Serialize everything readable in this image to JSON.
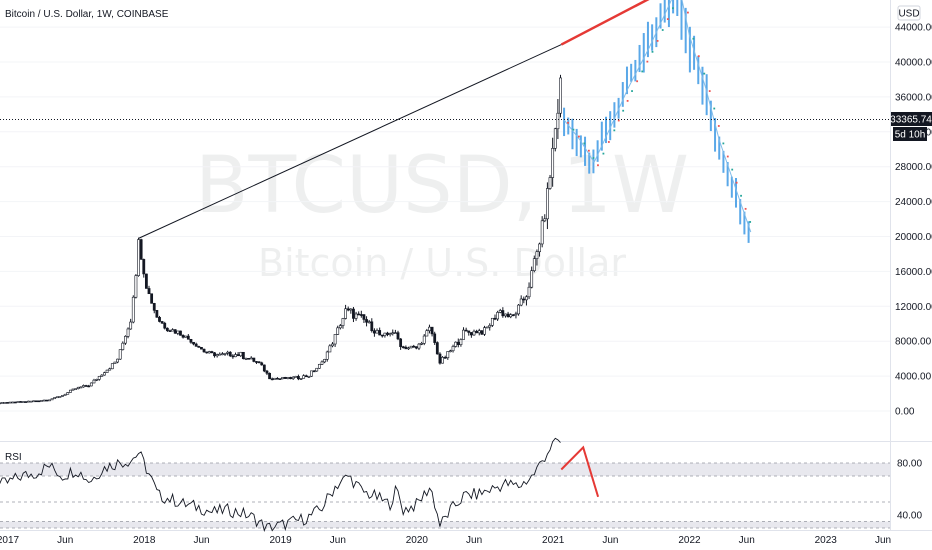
{
  "header": {
    "symbol_title": "Bitcoin / U.S. Dollar, 1W, COINBASE",
    "currency": "USD"
  },
  "watermark": {
    "ticker": "BTCUSD, 1W",
    "name": "Bitcoin / U.S. Dollar"
  },
  "price_tag": {
    "value": "33365.74",
    "countdown": "5d 10h"
  },
  "rsi_pane": {
    "label": "RSI"
  },
  "colors": {
    "candle": "#131722",
    "projection_bars": "#5aa8e8",
    "trendline": "#131722",
    "trendline_red": "#e53935",
    "rsi_line": "#131722",
    "rsi_projection": "#e53935",
    "dots_green": "#26a69a",
    "dots_red": "#ef5350",
    "tag_bg": "#131722"
  },
  "chart_data": [
    {
      "type": "candlestick",
      "title": "Bitcoin / U.S. Dollar, 1W, COINBASE",
      "y_ticks": [
        "44000.00",
        "40000.00",
        "36000.00",
        "32000.00",
        "28000.00",
        "24000.00",
        "20000.00",
        "16000.00",
        "12000.00",
        "8000.00",
        "4000.00",
        "0.00"
      ],
      "ylim": [
        0,
        48000
      ],
      "x_ticks": [
        "2017",
        "Jun",
        "2018",
        "Jun",
        "2019",
        "Jun",
        "2020",
        "Jun",
        "2021",
        "Jun",
        "2022",
        "Jun",
        "2023",
        "Jun"
      ],
      "x_tick_values": [
        2017.0,
        2017.42,
        2018.0,
        2018.42,
        2019.0,
        2019.42,
        2020.0,
        2020.42,
        2021.0,
        2021.42,
        2022.0,
        2022.42,
        2023.0,
        2023.42
      ],
      "xlim": [
        2017.0,
        2023.6
      ],
      "last_price": 33365.74,
      "price_path": [
        [
          2016.9,
          900
        ],
        [
          2017.15,
          1100
        ],
        [
          2017.3,
          1300
        ],
        [
          2017.4,
          1800
        ],
        [
          2017.5,
          2600
        ],
        [
          2017.6,
          3000
        ],
        [
          2017.7,
          4400
        ],
        [
          2017.8,
          5800
        ],
        [
          2017.9,
          10500
        ],
        [
          2017.96,
          19500
        ],
        [
          2018.02,
          14000
        ],
        [
          2018.1,
          10500
        ],
        [
          2018.17,
          9500
        ],
        [
          2018.25,
          9000
        ],
        [
          2018.35,
          8000
        ],
        [
          2018.45,
          6700
        ],
        [
          2018.55,
          6400
        ],
        [
          2018.7,
          6500
        ],
        [
          2018.85,
          5400
        ],
        [
          2018.92,
          3800
        ],
        [
          2019.0,
          3700
        ],
        [
          2019.1,
          3800
        ],
        [
          2019.2,
          4000
        ],
        [
          2019.3,
          5400
        ],
        [
          2019.4,
          8500
        ],
        [
          2019.48,
          11500
        ],
        [
          2019.55,
          11000
        ],
        [
          2019.65,
          10000
        ],
        [
          2019.75,
          8300
        ],
        [
          2019.82,
          9200
        ],
        [
          2019.9,
          7300
        ],
        [
          2020.0,
          7200
        ],
        [
          2020.1,
          9500
        ],
        [
          2020.17,
          5500
        ],
        [
          2020.25,
          7000
        ],
        [
          2020.35,
          9000
        ],
        [
          2020.5,
          9200
        ],
        [
          2020.6,
          11500
        ],
        [
          2020.7,
          10700
        ],
        [
          2020.8,
          13200
        ],
        [
          2020.88,
          18000
        ],
        [
          2020.95,
          23500
        ],
        [
          2021.02,
          33000
        ],
        [
          2021.06,
          38500
        ]
      ],
      "projection_path": [
        [
          2021.08,
          33365.74
        ],
        [
          2021.2,
          31000
        ],
        [
          2021.3,
          28500
        ],
        [
          2021.42,
          32500
        ],
        [
          2021.55,
          37000
        ],
        [
          2021.7,
          41500
        ],
        [
          2021.85,
          46500
        ],
        [
          2021.92,
          49000
        ],
        [
          2022.0,
          43000
        ],
        [
          2022.12,
          37000
        ],
        [
          2022.22,
          31000
        ],
        [
          2022.35,
          25000
        ],
        [
          2022.45,
          20500
        ]
      ],
      "trendlines": [
        {
          "from": [
            2017.96,
            19800
          ],
          "to": [
            2021.06,
            42000
          ],
          "color": "#131722"
        },
        {
          "from": [
            2021.06,
            42000
          ],
          "to": [
            2021.92,
            49000
          ],
          "color": "#e53935"
        }
      ]
    },
    {
      "type": "line",
      "title": "RSI",
      "y_ticks": [
        "80.00",
        "40.00"
      ],
      "ylim": [
        25,
        100
      ],
      "rsi_path": [
        [
          2016.9,
          62
        ],
        [
          2017.0,
          65
        ],
        [
          2017.1,
          70
        ],
        [
          2017.2,
          72
        ],
        [
          2017.3,
          78
        ],
        [
          2017.4,
          70
        ],
        [
          2017.5,
          75
        ],
        [
          2017.6,
          66
        ],
        [
          2017.7,
          76
        ],
        [
          2017.8,
          80
        ],
        [
          2017.9,
          82
        ],
        [
          2017.96,
          88
        ],
        [
          2018.05,
          68
        ],
        [
          2018.1,
          55
        ],
        [
          2018.2,
          52
        ],
        [
          2018.3,
          48
        ],
        [
          2018.4,
          46
        ],
        [
          2018.5,
          42
        ],
        [
          2018.6,
          44
        ],
        [
          2018.7,
          42
        ],
        [
          2018.8,
          38
        ],
        [
          2018.9,
          30
        ],
        [
          2019.0,
          32
        ],
        [
          2019.1,
          35
        ],
        [
          2019.2,
          38
        ],
        [
          2019.3,
          45
        ],
        [
          2019.4,
          62
        ],
        [
          2019.5,
          70
        ],
        [
          2019.6,
          58
        ],
        [
          2019.7,
          54
        ],
        [
          2019.8,
          48
        ],
        [
          2019.85,
          60
        ],
        [
          2019.9,
          44
        ],
        [
          2020.0,
          48
        ],
        [
          2020.1,
          62
        ],
        [
          2020.17,
          32
        ],
        [
          2020.25,
          44
        ],
        [
          2020.35,
          55
        ],
        [
          2020.45,
          56
        ],
        [
          2020.55,
          60
        ],
        [
          2020.65,
          64
        ],
        [
          2020.75,
          62
        ],
        [
          2020.85,
          70
        ],
        [
          2020.92,
          82
        ],
        [
          2020.98,
          92
        ],
        [
          2021.03,
          98
        ],
        [
          2021.06,
          94
        ]
      ],
      "rsi_projection": [
        [
          2021.06,
          75
        ],
        [
          2021.22,
          92
        ],
        [
          2021.33,
          54
        ]
      ]
    }
  ]
}
